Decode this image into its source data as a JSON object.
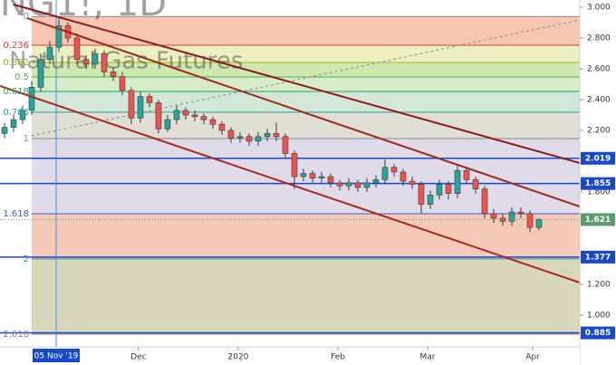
{
  "chart_data": {
    "type": "candlestick",
    "watermark": "Natural Gas Futures",
    "symbol": "NG1!, 1D",
    "xlim": [
      -0.5,
      63.5
    ],
    "ylim": [
      0.794,
      3.047
    ],
    "yticks": [
      {
        "value": 3,
        "label": "3.000"
      },
      {
        "value": 2.8,
        "label": "2.800"
      },
      {
        "value": 2.6,
        "label": "2.600"
      },
      {
        "value": 2.4,
        "label": "2.400"
      },
      {
        "value": 2.2,
        "label": "2.200"
      },
      {
        "value": 1.8,
        "label": "1.800"
      },
      {
        "value": 1.2,
        "label": "1.200"
      },
      {
        "value": 1,
        "label": "1.000"
      }
    ],
    "xticks": [
      {
        "value": 14.8,
        "label": "Dec"
      },
      {
        "value": 25.8,
        "label": "2020"
      },
      {
        "value": 36.8,
        "label": "Feb"
      },
      {
        "value": 46.7,
        "label": "Mar"
      },
      {
        "value": 58.3,
        "label": "Apr"
      }
    ],
    "cursor": {
      "value": 5.7,
      "label": "05 Nov '19"
    },
    "up_color": "#26a69a",
    "down_color": "#ef5350",
    "open": [
      2.18,
      2.22,
      2.27,
      2.33,
      2.48,
      2.66,
      2.74,
      2.88,
      2.8,
      2.66,
      2.63,
      2.7,
      2.58,
      2.55,
      2.46,
      2.28,
      2.42,
      2.38,
      2.21,
      2.27,
      2.33,
      2.3,
      2.29,
      2.27,
      2.24,
      2.2,
      2.15,
      2.16,
      2.13,
      2.16,
      2.18,
      2.16,
      2.05,
      1.9,
      1.92,
      1.89,
      1.9,
      1.86,
      1.84,
      1.86,
      1.83,
      1.86,
      1.88,
      1.96,
      1.93,
      1.87,
      1.85,
      1.72,
      1.78,
      1.85,
      1.79,
      1.94,
      1.88,
      1.82,
      1.66,
      1.63,
      1.61,
      1.67,
      1.66,
      1.57
    ],
    "high": [
      2.25,
      2.3,
      2.36,
      2.52,
      2.7,
      2.78,
      2.94,
      2.9,
      2.83,
      2.69,
      2.73,
      2.72,
      2.61,
      2.58,
      2.48,
      2.45,
      2.44,
      2.4,
      2.3,
      2.36,
      2.35,
      2.33,
      2.31,
      2.29,
      2.26,
      2.22,
      2.19,
      2.18,
      2.19,
      2.21,
      2.25,
      2.18,
      2.07,
      1.95,
      1.94,
      1.93,
      1.92,
      1.88,
      1.89,
      1.88,
      1.89,
      1.91,
      2.01,
      1.98,
      1.95,
      1.9,
      1.87,
      1.81,
      1.88,
      1.87,
      1.98,
      1.96,
      1.9,
      1.84,
      1.69,
      1.66,
      1.7,
      1.7,
      1.68,
      1.63
    ],
    "low": [
      2.15,
      2.19,
      2.24,
      2.3,
      2.45,
      2.63,
      2.71,
      2.77,
      2.63,
      2.6,
      2.6,
      2.55,
      2.52,
      2.43,
      2.24,
      2.25,
      2.35,
      2.18,
      2.19,
      2.24,
      2.27,
      2.26,
      2.24,
      2.21,
      2.17,
      2.12,
      2.12,
      2.1,
      2.1,
      2.13,
      2.13,
      2.02,
      1.82,
      1.87,
      1.86,
      1.86,
      1.83,
      1.81,
      1.81,
      1.8,
      1.8,
      1.83,
      1.85,
      1.9,
      1.84,
      1.82,
      1.66,
      1.69,
      1.75,
      1.75,
      1.76,
      1.85,
      1.79,
      1.63,
      1.6,
      1.58,
      1.58,
      1.63,
      1.54,
      1.55
    ],
    "close": [
      2.22,
      2.27,
      2.33,
      2.48,
      2.66,
      2.74,
      2.88,
      2.8,
      2.66,
      2.63,
      2.7,
      2.58,
      2.55,
      2.46,
      2.28,
      2.42,
      2.38,
      2.21,
      2.27,
      2.33,
      2.3,
      2.29,
      2.27,
      2.24,
      2.2,
      2.15,
      2.16,
      2.13,
      2.16,
      2.18,
      2.16,
      2.05,
      1.9,
      1.92,
      1.89,
      1.9,
      1.86,
      1.84,
      1.86,
      1.83,
      1.86,
      1.88,
      1.96,
      1.93,
      1.87,
      1.85,
      1.72,
      1.78,
      1.85,
      1.79,
      1.94,
      1.88,
      1.82,
      1.66,
      1.63,
      1.61,
      1.67,
      1.66,
      1.57,
      1.621
    ],
    "fib_levels": [
      {
        "label": "0",
        "price": 2.94,
        "color": "#888888",
        "fill": "#f6c6b2"
      },
      {
        "label": "0.236",
        "price": 2.753,
        "color": "#e0413c",
        "fill": "#ecefc0"
      },
      {
        "label": "0.382",
        "price": 2.641,
        "color": "#9bb521",
        "fill": "#cfe8b1"
      },
      {
        "label": "0.5",
        "price": 2.547,
        "color": "#4caf50",
        "fill": "#d7ecc9"
      },
      {
        "label": "0.618",
        "price": 2.453,
        "color": "#2e9e64",
        "fill": "#d3e7d8"
      },
      {
        "label": "0.786",
        "price": 2.318,
        "color": "#2a9d9d",
        "fill": "#e0dfd6"
      },
      {
        "label": "1",
        "price": 2.147,
        "color": "#888888",
        "fill": "#dfdbe8"
      },
      {
        "label": "1.618",
        "price": 1.659,
        "color": "#3c5bd6",
        "fill": "#f5cab8"
      },
      {
        "label": "2",
        "price": 1.365,
        "color": "#2a9d9d",
        "fill": "#d8d6bb"
      },
      {
        "label": "2.618",
        "price": 0.876,
        "color": "#888888",
        "fill": null
      }
    ],
    "levels": [
      {
        "value": 2.019,
        "label": "2.019"
      },
      {
        "value": 1.855,
        "label": "1.855"
      },
      {
        "value": 1.377,
        "label": "1.377"
      },
      {
        "value": 0.885,
        "label": "0.885"
      }
    ],
    "level_color": "#1848cc",
    "last_price": {
      "value": 1.621,
      "label": "1.621"
    },
    "last_color": "#5d9b6f"
  }
}
